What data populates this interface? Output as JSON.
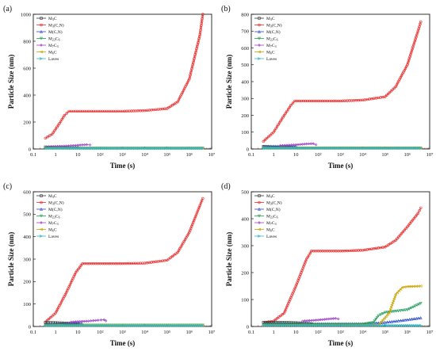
{
  "series_styles": {
    "M3C": {
      "color": "#333333",
      "marker": "square"
    },
    "M3(C,N)": {
      "color": "#e32b2b",
      "marker": "circle"
    },
    "M(C,N)": {
      "color": "#2a49c8",
      "marker": "triangle"
    },
    "M23C6": {
      "color": "#1f9e5a",
      "marker": "tri-down"
    },
    "M7C3": {
      "color": "#a040c8",
      "marker": "diamond"
    },
    "M6C": {
      "color": "#c8a400",
      "marker": "tri-left"
    },
    "Laves": {
      "color": "#29b8c8",
      "marker": "tri-right"
    }
  },
  "chart_data": [
    {
      "type": "line",
      "panel_label": "(a)",
      "xlabel": "Time (s)",
      "ylabel": "Particle Size (nm)",
      "x_scale": "log",
      "xlim": [
        0.1,
        10000000
      ],
      "ylim": [
        0,
        1000
      ],
      "xticks": [
        "0.1",
        "1",
        "10",
        "10²",
        "10³",
        "10⁴",
        "10⁵",
        "10⁶",
        "10⁷"
      ],
      "yticks": [
        "0",
        "200",
        "400",
        "600",
        "800",
        "1000"
      ],
      "legend_position": "top-left",
      "legend": [
        {
          "key": "M3C",
          "base": "M",
          "sub": "3",
          "rest": "C"
        },
        {
          "key": "M3(C,N)",
          "base": "M",
          "sub": "3",
          "rest": "(C,N)"
        },
        {
          "key": "M(C,N)",
          "base": "M(C,N)",
          "sub": "",
          "rest": ""
        },
        {
          "key": "M23C6",
          "base": "M",
          "sub": "23",
          "rest": "C",
          "sub2": "6"
        },
        {
          "key": "M7C3",
          "base": "M",
          "sub": "7",
          "rest": "C",
          "sub2": "3"
        },
        {
          "key": "M6C",
          "base": "M",
          "sub": "6",
          "rest": "C"
        },
        {
          "key": "Laves",
          "base": "Laves",
          "sub": "",
          "rest": ""
        }
      ],
      "series": [
        {
          "name": "M3(C,N)",
          "x": [
            0.35,
            0.7,
            1.5,
            2.5,
            4,
            10,
            100,
            1000,
            10000,
            100000,
            300000,
            1000000,
            3000000,
            4000000
          ],
          "y": [
            80,
            110,
            190,
            250,
            280,
            280,
            280,
            280,
            285,
            300,
            350,
            520,
            850,
            1000
          ]
        },
        {
          "name": "M3C",
          "x": [
            0.35,
            1,
            2,
            3
          ],
          "y": [
            15,
            12,
            10,
            8
          ]
        },
        {
          "name": "M(C,N)",
          "x": [
            0.35,
            1,
            3,
            10
          ],
          "y": [
            10,
            12,
            14,
            15
          ]
        },
        {
          "name": "M7C3",
          "x": [
            0.5,
            3,
            10,
            25,
            35
          ],
          "y": [
            18,
            22,
            28,
            32,
            30
          ]
        },
        {
          "name": "M23C6",
          "x": [
            0.35,
            4000000
          ],
          "y": [
            6,
            6
          ]
        },
        {
          "name": "M6C",
          "x": [
            0.35,
            4000000
          ],
          "y": [
            5,
            5
          ]
        },
        {
          "name": "Laves",
          "x": [
            0.35,
            4000000
          ],
          "y": [
            4,
            4
          ]
        }
      ]
    },
    {
      "type": "line",
      "panel_label": "(b)",
      "xlabel": "Time (s)",
      "ylabel": "Particle Size (nm)",
      "x_scale": "log",
      "xlim": [
        0.1,
        10000000
      ],
      "ylim": [
        0,
        800
      ],
      "xticks": [
        "0.1",
        "1",
        "10",
        "10²",
        "10³",
        "10⁴",
        "10⁵",
        "10⁶",
        "10⁷"
      ],
      "yticks": [
        "0",
        "100",
        "200",
        "300",
        "400",
        "500",
        "600",
        "700",
        "800"
      ],
      "legend_position": "top-left",
      "legend": [
        {
          "key": "M3C",
          "base": "M",
          "sub": "3",
          "rest": "C"
        },
        {
          "key": "M3(C,N)",
          "base": "M",
          "sub": "3",
          "rest": "(C,N)"
        },
        {
          "key": "M(C,N)",
          "base": "M(C,N)",
          "sub": "",
          "rest": ""
        },
        {
          "key": "M23C6",
          "base": "M",
          "sub": "23",
          "rest": "C",
          "sub2": "6"
        },
        {
          "key": "M7C3",
          "base": "M",
          "sub": "7",
          "rest": "C",
          "sub2": "3"
        },
        {
          "key": "M6C",
          "base": "M",
          "sub": "6",
          "rest": "C"
        },
        {
          "key": "Laves",
          "base": "Laves",
          "sub": "",
          "rest": ""
        }
      ],
      "series": [
        {
          "name": "M3(C,N)",
          "x": [
            0.35,
            1,
            3,
            6,
            9,
            100,
            1000,
            10000,
            100000,
            300000,
            1000000,
            3000000,
            4000000
          ],
          "y": [
            45,
            100,
            200,
            260,
            285,
            285,
            285,
            290,
            310,
            370,
            500,
            700,
            755
          ]
        },
        {
          "name": "M3C",
          "x": [
            0.35,
            1,
            3,
            6
          ],
          "y": [
            15,
            12,
            10,
            8
          ]
        },
        {
          "name": "M(C,N)",
          "x": [
            0.35,
            1,
            5,
            10
          ],
          "y": [
            15,
            16,
            17,
            18
          ]
        },
        {
          "name": "M7C3",
          "x": [
            2,
            10,
            30,
            60,
            80
          ],
          "y": [
            20,
            25,
            30,
            32,
            25
          ]
        },
        {
          "name": "M23C6",
          "x": [
            0.35,
            4000000
          ],
          "y": [
            6,
            6
          ]
        },
        {
          "name": "M6C",
          "x": [
            0.35,
            4000000
          ],
          "y": [
            5,
            5
          ]
        },
        {
          "name": "Laves",
          "x": [
            0.35,
            4000000
          ],
          "y": [
            4,
            4
          ]
        }
      ]
    },
    {
      "type": "line",
      "panel_label": "(c)",
      "xlabel": "Time (s)",
      "ylabel": "Particle Size (nm)",
      "x_scale": "log",
      "xlim": [
        0.1,
        10000000
      ],
      "ylim": [
        0,
        600
      ],
      "xticks": [
        "0.1",
        "1",
        "10",
        "10²",
        "10³",
        "10⁴",
        "10⁵",
        "10⁶",
        "10⁷"
      ],
      "yticks": [
        "0",
        "100",
        "200",
        "300",
        "400",
        "500",
        "600"
      ],
      "legend_position": "top-left",
      "legend": [
        {
          "key": "M3C",
          "base": "M",
          "sub": "3",
          "rest": "C"
        },
        {
          "key": "M3(C,N)",
          "base": "M",
          "sub": "3",
          "rest": "(C,N)"
        },
        {
          "key": "M(C,N)",
          "base": "M(C,N)",
          "sub": "",
          "rest": ""
        },
        {
          "key": "M23C6",
          "base": "M",
          "sub": "23",
          "rest": "C",
          "sub2": "6"
        },
        {
          "key": "M7C3",
          "base": "M",
          "sub": "7",
          "rest": "C",
          "sub2": "3"
        },
        {
          "key": "M6C",
          "base": "M",
          "sub": "6",
          "rest": "C"
        },
        {
          "key": "Laves",
          "base": "Laves",
          "sub": "",
          "rest": ""
        }
      ],
      "series": [
        {
          "name": "M3(C,N)",
          "x": [
            0.35,
            1,
            3,
            8,
            16,
            100,
            1000,
            10000,
            100000,
            300000,
            1000000,
            3000000,
            4000000
          ],
          "y": [
            20,
            60,
            150,
            240,
            280,
            280,
            280,
            282,
            295,
            330,
            420,
            540,
            570
          ]
        },
        {
          "name": "M3C",
          "x": [
            0.35,
            1,
            3,
            10
          ],
          "y": [
            18,
            17,
            15,
            12
          ]
        },
        {
          "name": "M(C,N)",
          "x": [
            0.35,
            2,
            8,
            15
          ],
          "y": [
            10,
            12,
            14,
            15
          ]
        },
        {
          "name": "M7C3",
          "x": [
            5,
            30,
            80,
            150,
            180
          ],
          "y": [
            20,
            24,
            28,
            30,
            25
          ]
        },
        {
          "name": "M23C6",
          "x": [
            0.35,
            4000000
          ],
          "y": [
            6,
            6
          ]
        },
        {
          "name": "M6C",
          "x": [
            0.35,
            4000000
          ],
          "y": [
            5,
            5
          ]
        },
        {
          "name": "Laves",
          "x": [
            0.35,
            4000000
          ],
          "y": [
            4,
            4
          ]
        }
      ]
    },
    {
      "type": "line",
      "panel_label": "(d)",
      "xlabel": "Time (s)",
      "ylabel": "Particle Size (nm)",
      "x_scale": "log",
      "xlim": [
        0.1,
        10000000
      ],
      "ylim": [
        0,
        500
      ],
      "xticks": [
        "0.1",
        "1",
        "10",
        "10²",
        "10³",
        "10⁴",
        "10⁵",
        "10⁶",
        "10⁷"
      ],
      "yticks": [
        "0",
        "100",
        "200",
        "300",
        "400",
        "500"
      ],
      "legend_position": "top-left",
      "legend": [
        {
          "key": "M3C",
          "base": "M",
          "sub": "3",
          "rest": "C"
        },
        {
          "key": "M3(C,N)",
          "base": "M",
          "sub": "3",
          "rest": "(C,N)"
        },
        {
          "key": "M(C,N)",
          "base": "M(C,N)",
          "sub": "",
          "rest": ""
        },
        {
          "key": "M23C6",
          "base": "M",
          "sub": "23",
          "rest": "C",
          "sub2": "6"
        },
        {
          "key": "M7C3",
          "base": "M",
          "sub": "7",
          "rest": "C",
          "sub2": "3"
        },
        {
          "key": "M6C",
          "base": "M",
          "sub": "6",
          "rest": "C"
        },
        {
          "key": "Laves",
          "base": "Laves",
          "sub": "",
          "rest": ""
        }
      ],
      "series": [
        {
          "name": "M3(C,N)",
          "x": [
            0.35,
            1,
            3,
            10,
            30,
            50,
            100,
            1000,
            10000,
            100000,
            300000,
            1000000,
            3000000,
            4000000
          ],
          "y": [
            15,
            20,
            50,
            150,
            250,
            280,
            280,
            280,
            283,
            295,
            320,
            370,
            420,
            440
          ]
        },
        {
          "name": "M3C",
          "x": [
            0.35,
            3,
            10,
            30,
            50
          ],
          "y": [
            15,
            15,
            14,
            12,
            10
          ]
        },
        {
          "name": "M(C,N)",
          "x": [
            0.35,
            10000,
            100000,
            1000000,
            4000000
          ],
          "y": [
            10,
            10,
            15,
            25,
            32
          ]
        },
        {
          "name": "M7C3",
          "x": [
            20,
            100,
            300,
            600,
            800
          ],
          "y": [
            20,
            24,
            28,
            30,
            28
          ]
        },
        {
          "name": "M23C6",
          "x": [
            0.35,
            10000,
            30000,
            50000,
            100000,
            1000000,
            4000000
          ],
          "y": [
            8,
            8,
            15,
            40,
            52,
            62,
            86
          ]
        },
        {
          "name": "M6C",
          "x": [
            0.35,
            50000,
            150000,
            300000,
            600000,
            1000000,
            4000000
          ],
          "y": [
            5,
            5,
            50,
            120,
            145,
            148,
            150
          ]
        },
        {
          "name": "Laves",
          "x": [
            0.35,
            4000000
          ],
          "y": [
            4,
            4
          ]
        }
      ]
    }
  ]
}
